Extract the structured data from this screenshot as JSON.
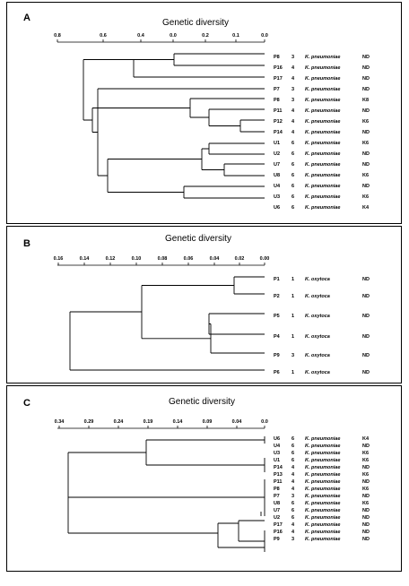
{
  "panels": [
    {
      "letter": "A",
      "title": "Genetic diversity",
      "axis_ticks": [
        "0.8",
        "0.6",
        "0.4",
        "0.0",
        "0.2",
        "0.1",
        "0.0"
      ],
      "rows": [
        {
          "id": "P8",
          "group": "3",
          "species": "K. pneumoniae",
          "code": "ND"
        },
        {
          "id": "P16",
          "group": "4",
          "species": "K. pneumoniae",
          "code": "ND"
        },
        {
          "id": "P17",
          "group": "4",
          "species": "K. pneumoniae",
          "code": "ND"
        },
        {
          "id": "P7",
          "group": "3",
          "species": "K. pneumoniae",
          "code": "ND"
        },
        {
          "id": "P8",
          "group": "3",
          "species": "K. pneumoniae",
          "code": "K8"
        },
        {
          "id": "P11",
          "group": "4",
          "species": "K. pneumoniae",
          "code": "ND"
        },
        {
          "id": "P12",
          "group": "4",
          "species": "K. pneumoniae",
          "code": "K6"
        },
        {
          "id": "P14",
          "group": "4",
          "species": "K. pneumoniae",
          "code": "ND"
        },
        {
          "id": "U1",
          "group": "6",
          "species": "K. pneumoniae",
          "code": "K6"
        },
        {
          "id": "U2",
          "group": "6",
          "species": "K. pneumoniae",
          "code": "ND"
        },
        {
          "id": "U7",
          "group": "6",
          "species": "K. pneumoniae",
          "code": "ND"
        },
        {
          "id": "U8",
          "group": "6",
          "species": "K. pneumoniae",
          "code": "K6"
        },
        {
          "id": "U4",
          "group": "6",
          "species": "K. pneumoniae",
          "code": "ND"
        },
        {
          "id": "U3",
          "group": "6",
          "species": "K. pneumoniae",
          "code": "K6"
        },
        {
          "id": "U6",
          "group": "6",
          "species": "K. pneumoniae",
          "code": "K4"
        }
      ]
    },
    {
      "letter": "B",
      "title": "Genetic diversity",
      "axis_ticks": [
        "0.16",
        "0.14",
        "0.12",
        "0.10",
        "0.08",
        "0.06",
        "0.04",
        "0.02",
        "0.00"
      ],
      "rows": [
        {
          "id": "P1",
          "group": "1",
          "species": "K. oxytoca",
          "code": "ND"
        },
        {
          "id": "P2",
          "group": "1",
          "species": "K. oxytoca",
          "code": "ND"
        },
        {
          "id": "P5",
          "group": "1",
          "species": "K. oxytoca",
          "code": "ND"
        },
        {
          "id": "P4",
          "group": "1",
          "species": "K. oxytoca",
          "code": "ND"
        },
        {
          "id": "P9",
          "group": "3",
          "species": "K. oxytoca",
          "code": "ND"
        },
        {
          "id": "P6",
          "group": "1",
          "species": "K. oxytoca",
          "code": "ND"
        }
      ]
    },
    {
      "letter": "C",
      "title": "Genetic diversity",
      "axis_ticks": [
        "0.34",
        "0.29",
        "0.24",
        "0.19",
        "0.14",
        "0.09",
        "0.04",
        "0.0"
      ],
      "rows": [
        {
          "id": "U6",
          "group": "6",
          "species": "K. pneumoniae",
          "code": "K4"
        },
        {
          "id": "U4",
          "group": "6",
          "species": "K. pneumoniae",
          "code": "ND"
        },
        {
          "id": "U3",
          "group": "6",
          "species": "K. pneumoniae",
          "code": "K6"
        },
        {
          "id": "U1",
          "group": "6",
          "species": "K. pneumoniae",
          "code": "K6"
        },
        {
          "id": "P14",
          "group": "4",
          "species": "K. pneumoniae",
          "code": "ND"
        },
        {
          "id": "P13",
          "group": "4",
          "species": "K. pneumoniae",
          "code": "K6"
        },
        {
          "id": "P11",
          "group": "4",
          "species": "K. pneumoniae",
          "code": "ND"
        },
        {
          "id": "P8",
          "group": "4",
          "species": "K. pneumoniae",
          "code": "K6"
        },
        {
          "id": "P7",
          "group": "3",
          "species": "K. pneumoniae",
          "code": "ND"
        },
        {
          "id": "U8",
          "group": "6",
          "species": "K. pneumoniae",
          "code": "K6"
        },
        {
          "id": "U7",
          "group": "6",
          "species": "K. pneumoniae",
          "code": "ND"
        },
        {
          "id": "U2",
          "group": "6",
          "species": "K. pneumoniae",
          "code": "ND"
        },
        {
          "id": "P17",
          "group": "4",
          "species": "K. pneumoniae",
          "code": "ND"
        },
        {
          "id": "P16",
          "group": "4",
          "species": "K. pneumoniae",
          "code": "ND"
        },
        {
          "id": "P9",
          "group": "3",
          "species": "K. pneumoniae",
          "code": "ND"
        }
      ]
    }
  ]
}
